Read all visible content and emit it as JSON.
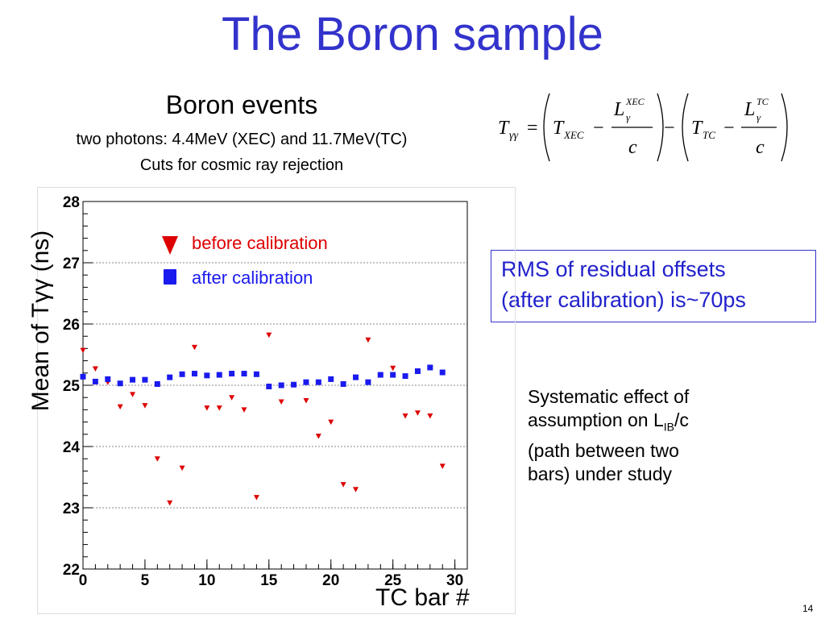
{
  "slide": {
    "title": "The Boron sample",
    "page_number": "14"
  },
  "chart_heading": {
    "title": "Boron events",
    "line1": "two photons: 4.4MeV (XEC) and 11.7MeV(TC)",
    "line2": "Cuts for cosmic ray rejection"
  },
  "rms_note": {
    "line1": "RMS of residual offsets",
    "line2": "(after calibration) is~70ps"
  },
  "systematic_note": {
    "line1": "Systematic effect of",
    "line2_pre": "assumption on L",
    "line2_sub": "IB",
    "line2_post": "/c",
    "line3": "(path between two",
    "line4": "bars) under study"
  },
  "formula": {
    "lhs": "T",
    "lhs_sub": "γγ",
    "t_xec": "T",
    "t_xec_sub": "XEC",
    "l_xec": "L",
    "l_xec_sub": "γ",
    "l_xec_sup": "XEC",
    "t_tc": "T",
    "t_tc_sub": "TC",
    "l_tc": "L",
    "l_tc_sub": "γ",
    "l_tc_sup": "TC",
    "denominator": "c",
    "eq": "=",
    "minus": "−"
  },
  "colors": {
    "title": "#3333cc",
    "before": "#dd0000",
    "after": "#1a1aee",
    "grid": "#888888"
  },
  "chart_data": {
    "type": "scatter",
    "xlabel": "TC bar #",
    "ylabel": "Mean of  Tγγ (ns)",
    "xlim": [
      0,
      31
    ],
    "ylim": [
      22,
      28
    ],
    "x_ticks": [
      "0",
      "5",
      "10",
      "15",
      "20",
      "25",
      "30"
    ],
    "y_ticks": [
      "22",
      "23",
      "24",
      "25",
      "26",
      "27",
      "28"
    ],
    "grid": "horizontal dotted",
    "legend_position": "top-left",
    "series": [
      {
        "name": "before calibration",
        "marker": "down-triangle",
        "color": "#dd0000",
        "x": [
          0,
          1,
          2,
          3,
          4,
          5,
          6,
          7,
          8,
          9,
          10,
          11,
          12,
          13,
          14,
          15,
          16,
          18,
          19,
          20,
          23,
          25,
          26,
          27,
          28,
          29,
          21,
          22
        ],
        "y": [
          25.57,
          25.27,
          25.05,
          24.65,
          24.85,
          24.67,
          23.8,
          23.08,
          23.65,
          25.62,
          24.63,
          24.63,
          24.8,
          24.6,
          23.17,
          25.82,
          24.73,
          24.75,
          24.17,
          24.4,
          25.74,
          25.28,
          24.5,
          24.55,
          24.5,
          23.68,
          23.38,
          23.3
        ]
      },
      {
        "name": "after calibration",
        "marker": "square",
        "color": "#1a1aee",
        "x": [
          0,
          1,
          2,
          3,
          4,
          5,
          6,
          7,
          8,
          9,
          10,
          11,
          12,
          13,
          14,
          15,
          16,
          17,
          18,
          19,
          20,
          21,
          22,
          23,
          24,
          25,
          26,
          27,
          28,
          29
        ],
        "y": [
          25.14,
          25.06,
          25.1,
          25.03,
          25.09,
          25.09,
          25.02,
          25.13,
          25.18,
          25.19,
          25.16,
          25.17,
          25.19,
          25.19,
          25.18,
          24.98,
          25.0,
          25.01,
          25.05,
          25.05,
          25.1,
          25.02,
          25.13,
          25.05,
          25.17,
          25.17,
          25.15,
          25.23,
          25.29,
          25.21
        ]
      }
    ]
  }
}
